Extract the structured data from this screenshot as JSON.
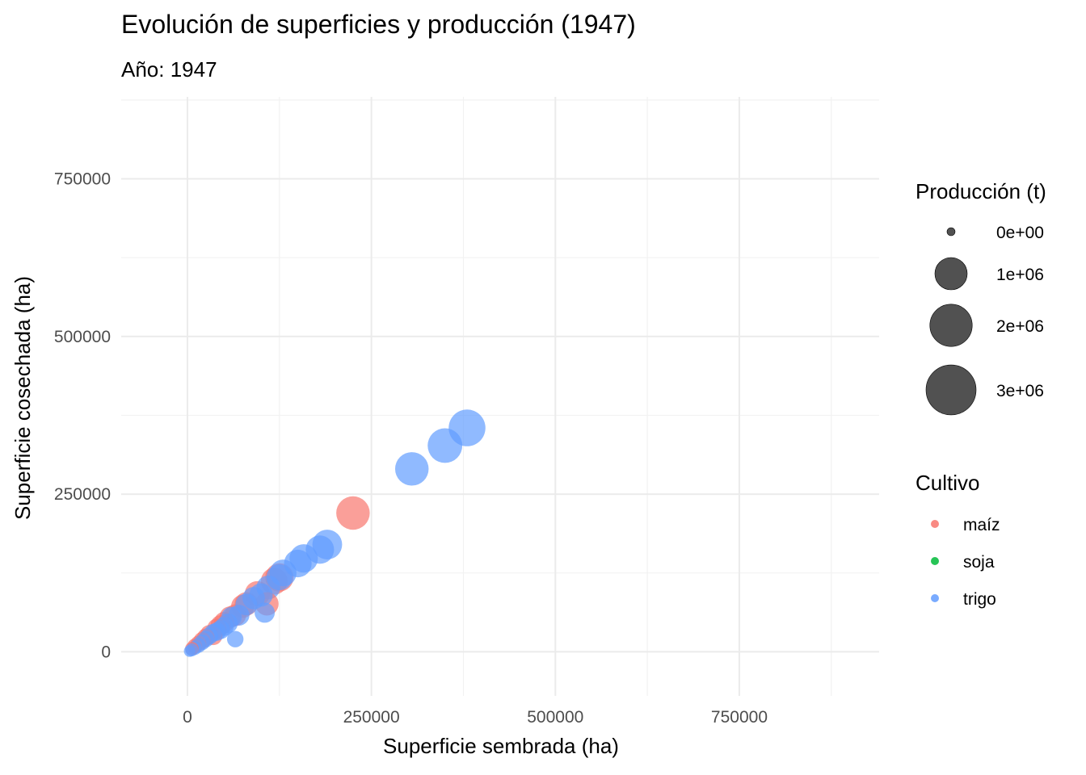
{
  "chart_data": {
    "type": "scatter",
    "title": "Evolución de superficies y producción (1947)",
    "subtitle": "Año: 1947",
    "xlabel": "Superficie sembrada (ha)",
    "ylabel": "Superficie cosechada (ha)",
    "xlim": [
      -90000,
      940000
    ],
    "ylim": [
      -70000,
      880000
    ],
    "x_ticks": [
      0,
      250000,
      500000,
      750000
    ],
    "x_tick_labels": [
      "0",
      "250000",
      "500000",
      "750000"
    ],
    "y_ticks": [
      0,
      250000,
      500000,
      750000
    ],
    "y_tick_labels": [
      "0",
      "250000",
      "500000",
      "750000"
    ],
    "grid": true,
    "legend_position": "right",
    "size_legend": {
      "title": "Producción (t)",
      "entries": [
        {
          "label": "0e+00",
          "value": 0
        },
        {
          "label": "1e+06",
          "value": 1000000
        },
        {
          "label": "2e+06",
          "value": 2000000
        },
        {
          "label": "3e+06",
          "value": 3000000
        }
      ]
    },
    "color_legend": {
      "title": "Cultivo",
      "entries": [
        {
          "label": "maíz",
          "color": "#F8766D"
        },
        {
          "label": "soja",
          "color": "#00BA38"
        },
        {
          "label": "trigo",
          "color": "#619CFF"
        }
      ]
    },
    "series": [
      {
        "name": "maíz",
        "color": "#F8766D",
        "points": [
          {
            "x": 225000,
            "y": 220000,
            "size": 1100000
          },
          {
            "x": 125000,
            "y": 118000,
            "size": 700000
          },
          {
            "x": 118000,
            "y": 112000,
            "size": 600000
          },
          {
            "x": 108000,
            "y": 76000,
            "size": 400000
          },
          {
            "x": 95000,
            "y": 92000,
            "size": 500000
          },
          {
            "x": 80000,
            "y": 76000,
            "size": 400000
          },
          {
            "x": 75000,
            "y": 72000,
            "size": 380000
          },
          {
            "x": 65000,
            "y": 58000,
            "size": 320000
          },
          {
            "x": 58000,
            "y": 55000,
            "size": 300000
          },
          {
            "x": 50000,
            "y": 47000,
            "size": 260000
          },
          {
            "x": 45000,
            "y": 42000,
            "size": 240000
          },
          {
            "x": 40000,
            "y": 37000,
            "size": 220000
          },
          {
            "x": 35000,
            "y": 25000,
            "size": 180000
          },
          {
            "x": 30000,
            "y": 28000,
            "size": 180000
          },
          {
            "x": 25000,
            "y": 23000,
            "size": 150000
          },
          {
            "x": 20000,
            "y": 18000,
            "size": 130000
          },
          {
            "x": 15000,
            "y": 13000,
            "size": 100000
          },
          {
            "x": 10000,
            "y": 9000,
            "size": 80000
          },
          {
            "x": 6000,
            "y": 5000,
            "size": 50000
          }
        ]
      },
      {
        "name": "soja",
        "color": "#00BA38",
        "points": []
      },
      {
        "name": "trigo",
        "color": "#619CFF",
        "points": [
          {
            "x": 380000,
            "y": 355000,
            "size": 1400000
          },
          {
            "x": 350000,
            "y": 327000,
            "size": 1200000
          },
          {
            "x": 305000,
            "y": 290000,
            "size": 1100000
          },
          {
            "x": 190000,
            "y": 170000,
            "size": 800000
          },
          {
            "x": 180000,
            "y": 162000,
            "size": 700000
          },
          {
            "x": 158000,
            "y": 148000,
            "size": 700000
          },
          {
            "x": 150000,
            "y": 140000,
            "size": 650000
          },
          {
            "x": 130000,
            "y": 125000,
            "size": 600000
          },
          {
            "x": 125000,
            "y": 118000,
            "size": 550000
          },
          {
            "x": 110000,
            "y": 102000,
            "size": 420000
          },
          {
            "x": 100000,
            "y": 90000,
            "size": 400000
          },
          {
            "x": 105000,
            "y": 62000,
            "size": 250000
          },
          {
            "x": 90000,
            "y": 85000,
            "size": 350000
          },
          {
            "x": 80000,
            "y": 75000,
            "size": 320000
          },
          {
            "x": 70000,
            "y": 58000,
            "size": 280000
          },
          {
            "x": 65000,
            "y": 20000,
            "size": 120000
          },
          {
            "x": 60000,
            "y": 55000,
            "size": 260000
          },
          {
            "x": 55000,
            "y": 45000,
            "size": 230000
          },
          {
            "x": 50000,
            "y": 40000,
            "size": 200000
          },
          {
            "x": 45000,
            "y": 35000,
            "size": 200000
          },
          {
            "x": 40000,
            "y": 32000,
            "size": 180000
          },
          {
            "x": 35000,
            "y": 30000,
            "size": 160000
          },
          {
            "x": 30000,
            "y": 25000,
            "size": 140000
          },
          {
            "x": 25000,
            "y": 20000,
            "size": 120000
          },
          {
            "x": 20000,
            "y": 15000,
            "size": 100000
          },
          {
            "x": 15000,
            "y": 10000,
            "size": 80000
          },
          {
            "x": 10000,
            "y": 6000,
            "size": 60000
          },
          {
            "x": 6000,
            "y": 3000,
            "size": 40000
          },
          {
            "x": 3000,
            "y": 1000,
            "size": 20000
          }
        ]
      }
    ]
  }
}
